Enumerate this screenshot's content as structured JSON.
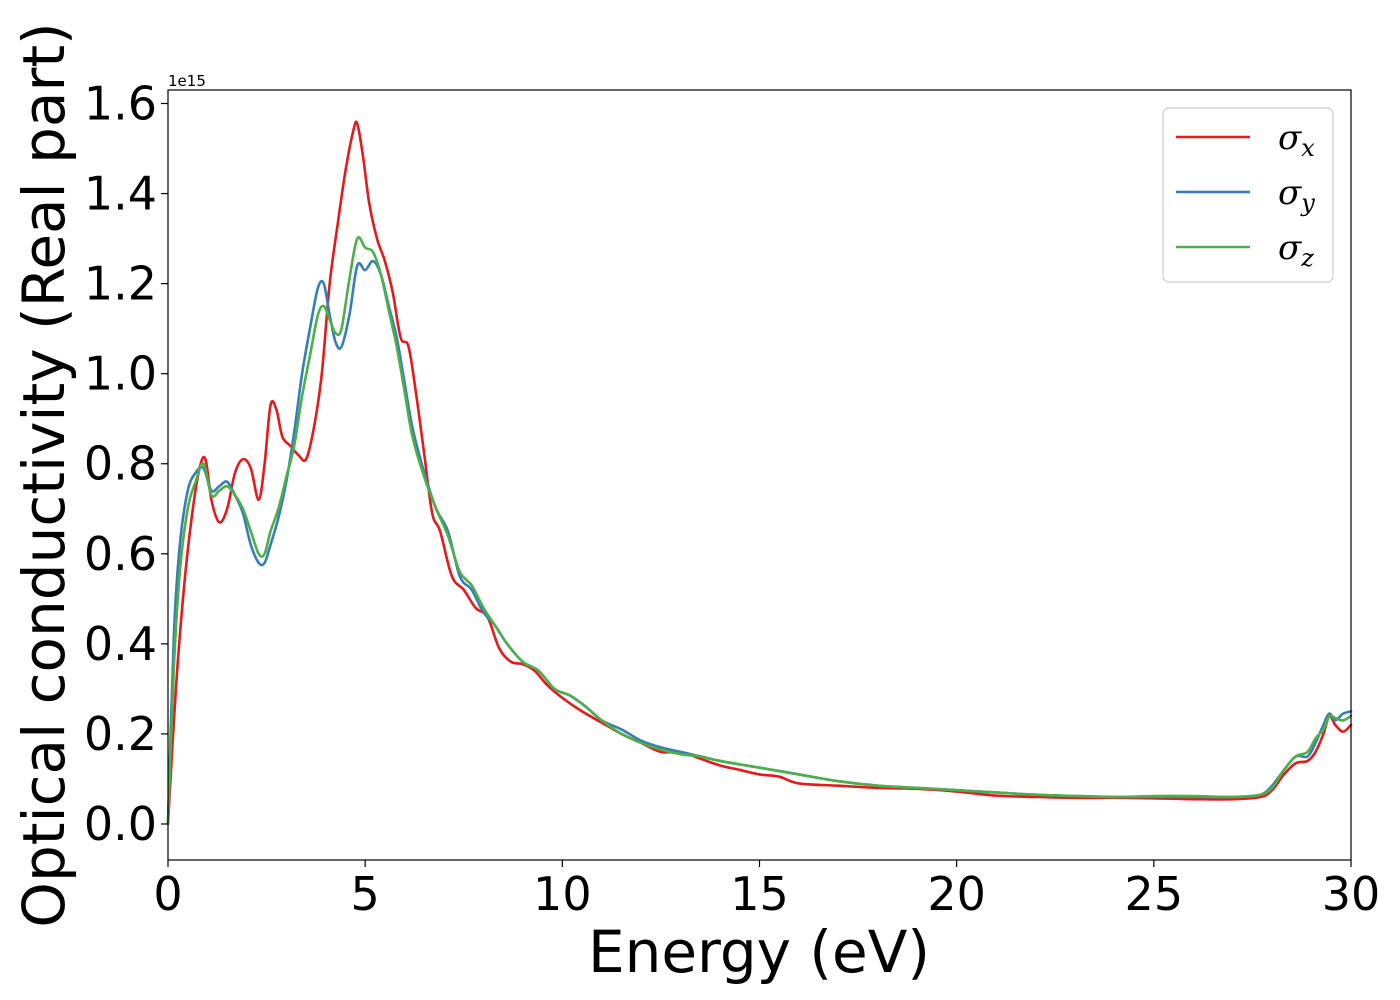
{
  "chart_data": {
    "type": "line",
    "xlabel": "Energy (eV)",
    "ylabel": "Optical conductivity (Real part)",
    "y_offset_text": "1e15",
    "xlim": [
      0,
      30
    ],
    "ylim": [
      -0.08,
      1.63
    ],
    "xticks": [
      0,
      5,
      10,
      15,
      20,
      25,
      30
    ],
    "xtick_labels": [
      "0",
      "5",
      "10",
      "15",
      "20",
      "25",
      "30"
    ],
    "yticks": [
      0.0,
      0.2,
      0.4,
      0.6,
      0.8,
      1.0,
      1.2,
      1.4,
      1.6
    ],
    "ytick_labels": [
      "0.0",
      "0.2",
      "0.4",
      "0.6",
      "0.8",
      "1.0",
      "1.2",
      "1.4",
      "1.6"
    ],
    "grid": false,
    "legend_position": "top-right",
    "series": [
      {
        "name": "σx",
        "symbol": "σ",
        "subscript": "x",
        "color": "#e41a1c",
        "x": [
          0,
          0.2,
          0.4,
          0.6,
          0.8,
          0.95,
          1.1,
          1.3,
          1.5,
          1.7,
          1.9,
          2.1,
          2.3,
          2.45,
          2.6,
          2.75,
          2.9,
          3.1,
          3.3,
          3.5,
          3.7,
          3.9,
          4.1,
          4.3,
          4.5,
          4.7,
          4.8,
          4.95,
          5.1,
          5.3,
          5.5,
          5.7,
          5.9,
          6.1,
          6.3,
          6.5,
          6.7,
          6.9,
          7.2,
          7.5,
          7.8,
          8.1,
          8.4,
          8.7,
          9.0,
          9.3,
          9.6,
          10.0,
          10.5,
          11.0,
          11.5,
          12.0,
          12.5,
          13.0,
          13.5,
          14.0,
          14.5,
          15.0,
          15.5,
          16.0,
          17.0,
          18.0,
          19.0,
          20.0,
          21.0,
          22.0,
          23.0,
          24.0,
          25.0,
          26.0,
          27.0,
          27.7,
          28.0,
          28.3,
          28.6,
          28.9,
          29.1,
          29.3,
          29.45,
          29.6,
          29.8,
          30.0
        ],
        "y": [
          0.0,
          0.3,
          0.52,
          0.68,
          0.79,
          0.81,
          0.72,
          0.67,
          0.7,
          0.78,
          0.81,
          0.79,
          0.72,
          0.8,
          0.93,
          0.92,
          0.86,
          0.84,
          0.82,
          0.81,
          0.88,
          1.0,
          1.2,
          1.33,
          1.45,
          1.54,
          1.555,
          1.48,
          1.38,
          1.3,
          1.25,
          1.18,
          1.08,
          1.06,
          0.95,
          0.82,
          0.69,
          0.65,
          0.55,
          0.52,
          0.48,
          0.46,
          0.39,
          0.36,
          0.355,
          0.34,
          0.31,
          0.28,
          0.25,
          0.225,
          0.2,
          0.18,
          0.16,
          0.16,
          0.145,
          0.13,
          0.12,
          0.11,
          0.105,
          0.09,
          0.085,
          0.08,
          0.078,
          0.072,
          0.063,
          0.06,
          0.058,
          0.058,
          0.057,
          0.055,
          0.055,
          0.06,
          0.075,
          0.11,
          0.135,
          0.14,
          0.16,
          0.2,
          0.24,
          0.22,
          0.205,
          0.22
        ]
      },
      {
        "name": "σy",
        "symbol": "σ",
        "subscript": "y",
        "color": "#377eb8",
        "x": [
          0,
          0.15,
          0.3,
          0.5,
          0.7,
          0.9,
          1.1,
          1.3,
          1.5,
          1.7,
          1.9,
          2.1,
          2.3,
          2.45,
          2.6,
          2.8,
          3.0,
          3.2,
          3.4,
          3.6,
          3.8,
          3.95,
          4.1,
          4.25,
          4.4,
          4.6,
          4.8,
          5.0,
          5.2,
          5.4,
          5.6,
          5.8,
          6.0,
          6.2,
          6.5,
          6.8,
          7.1,
          7.4,
          7.7,
          8.0,
          8.3,
          8.6,
          9.0,
          9.4,
          9.8,
          10.2,
          10.6,
          11.0,
          11.5,
          12.0,
          12.5,
          13.0,
          13.5,
          14.0,
          15.0,
          16.0,
          17.0,
          18.0,
          19.0,
          20.0,
          21.0,
          22.0,
          23.0,
          24.0,
          25.0,
          26.0,
          27.0,
          27.7,
          28.0,
          28.3,
          28.6,
          28.9,
          29.1,
          29.3,
          29.45,
          29.6,
          29.8,
          30.0
        ],
        "y": [
          0.0,
          0.42,
          0.62,
          0.74,
          0.78,
          0.79,
          0.74,
          0.75,
          0.76,
          0.73,
          0.69,
          0.62,
          0.58,
          0.58,
          0.62,
          0.68,
          0.76,
          0.87,
          1.0,
          1.1,
          1.19,
          1.2,
          1.13,
          1.07,
          1.06,
          1.13,
          1.24,
          1.23,
          1.25,
          1.22,
          1.15,
          1.08,
          0.98,
          0.88,
          0.78,
          0.7,
          0.65,
          0.55,
          0.52,
          0.47,
          0.44,
          0.4,
          0.36,
          0.34,
          0.3,
          0.285,
          0.26,
          0.23,
          0.21,
          0.185,
          0.17,
          0.16,
          0.15,
          0.14,
          0.125,
          0.11,
          0.095,
          0.085,
          0.08,
          0.075,
          0.07,
          0.065,
          0.062,
          0.06,
          0.06,
          0.06,
          0.06,
          0.065,
          0.085,
          0.12,
          0.15,
          0.15,
          0.18,
          0.22,
          0.245,
          0.23,
          0.245,
          0.25
        ]
      },
      {
        "name": "σz",
        "symbol": "σ",
        "subscript": "z",
        "color": "#4daf4a",
        "x": [
          0,
          0.15,
          0.3,
          0.5,
          0.7,
          0.9,
          1.1,
          1.3,
          1.5,
          1.7,
          1.9,
          2.1,
          2.3,
          2.45,
          2.6,
          2.8,
          3.0,
          3.2,
          3.4,
          3.6,
          3.8,
          3.95,
          4.1,
          4.25,
          4.4,
          4.6,
          4.8,
          5.0,
          5.2,
          5.4,
          5.6,
          5.8,
          6.0,
          6.2,
          6.5,
          6.8,
          7.1,
          7.4,
          7.7,
          8.0,
          8.3,
          8.6,
          9.0,
          9.4,
          9.8,
          10.2,
          10.6,
          11.0,
          11.5,
          12.0,
          12.5,
          13.0,
          13.5,
          14.0,
          15.0,
          16.0,
          17.0,
          18.0,
          19.0,
          20.0,
          21.0,
          22.0,
          23.0,
          24.0,
          25.0,
          26.0,
          27.0,
          27.7,
          28.0,
          28.3,
          28.6,
          28.9,
          29.1,
          29.3,
          29.45,
          29.6,
          29.8,
          30.0
        ],
        "y": [
          0.0,
          0.35,
          0.56,
          0.7,
          0.76,
          0.8,
          0.73,
          0.74,
          0.75,
          0.73,
          0.7,
          0.65,
          0.6,
          0.6,
          0.65,
          0.7,
          0.77,
          0.84,
          0.95,
          1.04,
          1.13,
          1.15,
          1.12,
          1.09,
          1.1,
          1.21,
          1.3,
          1.28,
          1.27,
          1.22,
          1.14,
          1.06,
          0.96,
          0.86,
          0.77,
          0.7,
          0.64,
          0.56,
          0.53,
          0.48,
          0.44,
          0.4,
          0.36,
          0.34,
          0.3,
          0.285,
          0.26,
          0.23,
          0.2,
          0.18,
          0.165,
          0.155,
          0.15,
          0.14,
          0.125,
          0.11,
          0.095,
          0.085,
          0.08,
          0.075,
          0.07,
          0.065,
          0.062,
          0.06,
          0.062,
          0.062,
          0.06,
          0.065,
          0.08,
          0.12,
          0.15,
          0.16,
          0.19,
          0.21,
          0.24,
          0.235,
          0.23,
          0.24
        ]
      }
    ]
  }
}
